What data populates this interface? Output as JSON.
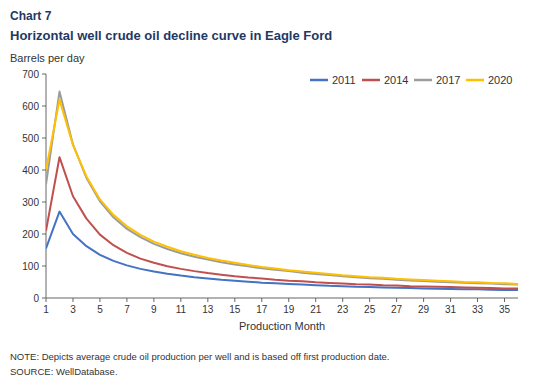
{
  "chart_data": {
    "type": "line",
    "title": "Chart 7",
    "subtitle": "Horizontal well crude oil decline curve in Eagle Ford",
    "y_label": "Barrels per day",
    "x_label": "Production Month",
    "annotations": [
      "NOTE: Depicts average crude oil production per well and is based off first production date.",
      "SOURCE: WellDatabase."
    ],
    "x": [
      1,
      2,
      3,
      4,
      5,
      6,
      7,
      8,
      9,
      10,
      11,
      12,
      13,
      14,
      15,
      16,
      17,
      18,
      19,
      20,
      21,
      22,
      23,
      24,
      25,
      26,
      27,
      28,
      29,
      30,
      31,
      32,
      33,
      34,
      35,
      36
    ],
    "series": [
      {
        "name": "2011",
        "color": "#4472C4",
        "values": [
          155,
          270,
          200,
          162,
          135,
          116,
          102,
          91,
          83,
          76,
          70,
          65,
          61,
          57,
          54,
          51,
          48,
          46,
          44,
          42,
          40,
          38,
          37,
          35,
          34,
          33,
          32,
          31,
          30,
          29,
          28,
          27,
          27,
          26,
          25,
          25
        ]
      },
      {
        "name": "2014",
        "color": "#C0504D",
        "values": [
          210,
          440,
          318,
          248,
          198,
          165,
          141,
          123,
          110,
          99,
          91,
          84,
          78,
          73,
          68,
          64,
          61,
          57,
          54,
          52,
          49,
          47,
          45,
          43,
          42,
          40,
          39,
          37,
          36,
          35,
          34,
          33,
          32,
          31,
          30,
          30
        ]
      },
      {
        "name": "2017",
        "color": "#9C9C9C",
        "values": [
          355,
          645,
          480,
          375,
          302,
          252,
          216,
          190,
          169,
          153,
          140,
          129,
          120,
          112,
          105,
          99,
          93,
          88,
          84,
          79,
          75,
          72,
          68,
          65,
          62,
          60,
          57,
          55,
          53,
          51,
          49,
          48,
          46,
          45,
          43,
          42
        ]
      },
      {
        "name": "2020",
        "color": "#FFC000",
        "values": [
          400,
          620,
          478,
          380,
          308,
          260,
          224,
          197,
          176,
          160,
          146,
          135,
          125,
          117,
          110,
          103,
          97,
          92,
          87,
          83,
          79,
          75,
          71,
          68,
          65,
          63,
          60,
          58,
          56,
          54,
          52,
          50,
          49,
          47,
          46,
          44
        ]
      }
    ],
    "xlim": [
      1,
      36
    ],
    "xticks": [
      1,
      3,
      5,
      7,
      9,
      11,
      13,
      15,
      17,
      19,
      21,
      23,
      25,
      27,
      29,
      31,
      33,
      35
    ],
    "ylim": [
      0,
      700
    ],
    "yticks": [
      0,
      100,
      200,
      300,
      400,
      500,
      600,
      700
    ],
    "grid": false,
    "legend": "upper right"
  }
}
